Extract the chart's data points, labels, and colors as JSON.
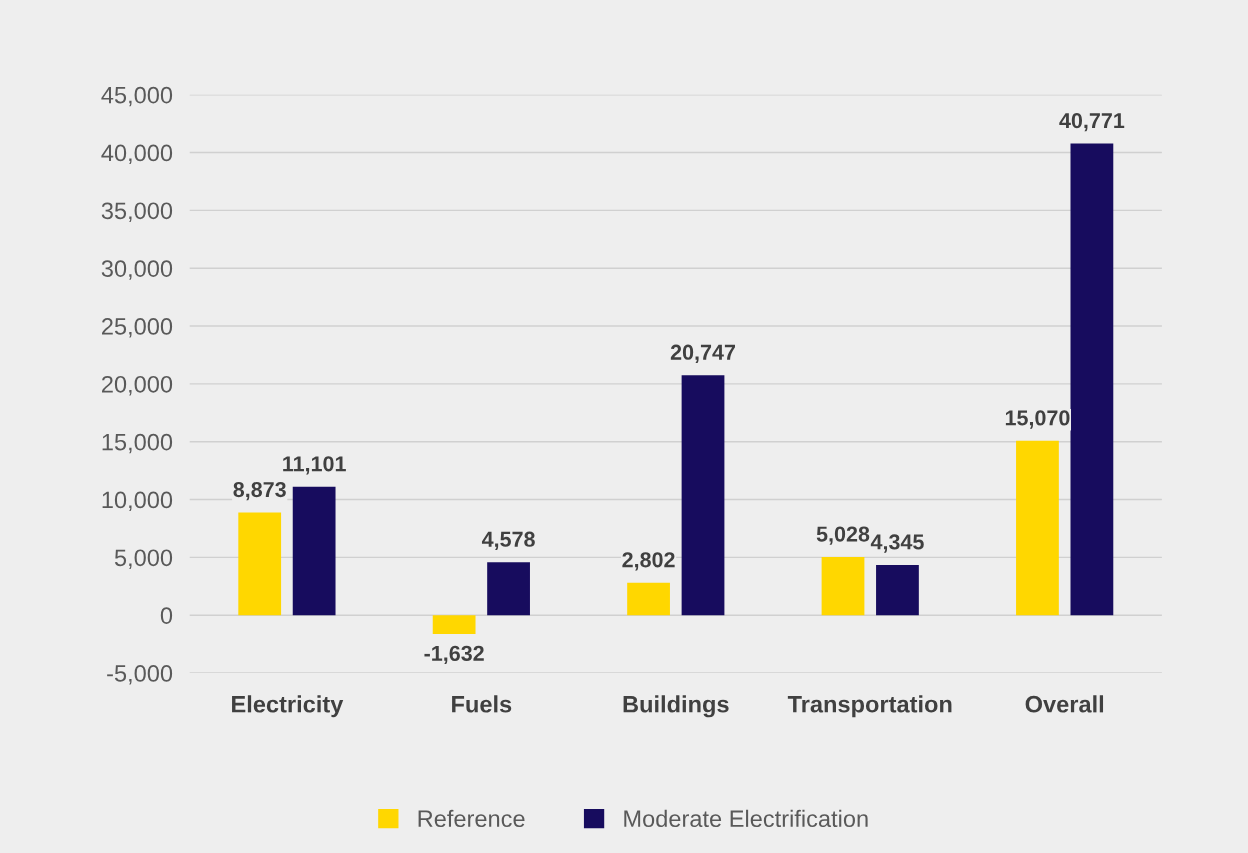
{
  "chart_data": {
    "type": "bar",
    "categories": [
      "Electricity",
      "Fuels",
      "Buildings",
      "Transportation",
      "Overall"
    ],
    "series": [
      {
        "name": "Reference",
        "color": "#ffd700",
        "values": [
          8873,
          -1632,
          2802,
          5028,
          15070
        ],
        "value_labels": [
          "8,873",
          "-1,632",
          "2,802",
          "5,028",
          "15,070"
        ]
      },
      {
        "name": "Moderate Electrification",
        "color": "#170c5e",
        "values": [
          11101,
          4578,
          20747,
          4345,
          40771
        ],
        "value_labels": [
          "11,101",
          "4,578",
          "20,747",
          "4,345",
          "40,771"
        ]
      }
    ],
    "ylim": [
      -5000,
      45000
    ],
    "yticks": [
      {
        "value": -5000,
        "label": "-5,000"
      },
      0,
      {
        "value": 5000,
        "label": "5,000"
      },
      {
        "value": 10000,
        "label": "10,000"
      },
      {
        "value": 15000,
        "label": "15,000"
      },
      {
        "value": 20000,
        "label": "20,000"
      },
      {
        "value": 25000,
        "label": "25,000"
      },
      {
        "value": 30000,
        "label": "30,000"
      },
      {
        "value": 35000,
        "label": "35,000"
      },
      {
        "value": 40000,
        "label": "40,000"
      },
      {
        "value": 45000,
        "label": "45,000"
      }
    ],
    "grid": "y",
    "legend": "bottom"
  }
}
